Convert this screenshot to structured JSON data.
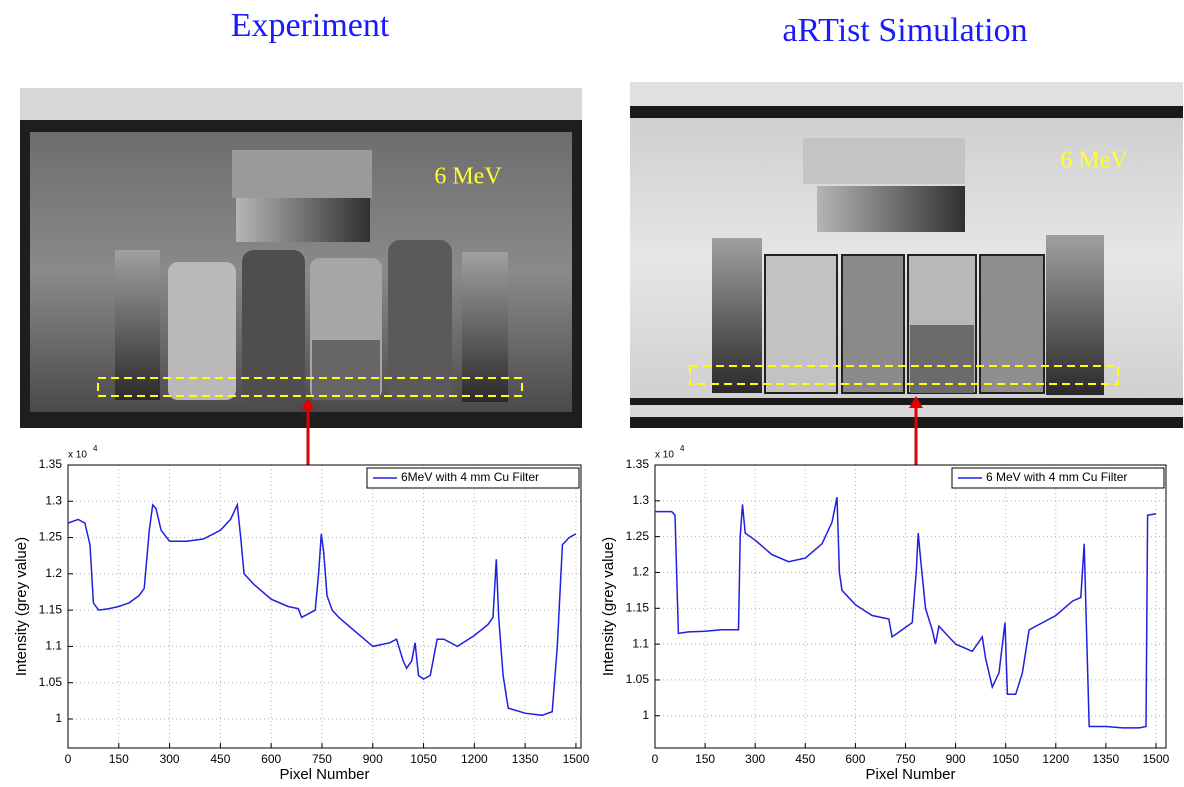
{
  "panels": [
    {
      "title": "Experiment",
      "energy_label": "6 MeV"
    },
    {
      "title": "aRTist Simulation",
      "energy_label": "6 MeV"
    }
  ],
  "chart_data": [
    {
      "type": "line",
      "x_label": "Pixel Number",
      "y_label": "Intensity (grey value)",
      "y_multiplier": "x 10",
      "y_multiplier_exp": "4",
      "xlim": [
        0,
        1515
      ],
      "xticks": [
        0,
        150,
        300,
        450,
        600,
        750,
        900,
        1050,
        1200,
        1350,
        1500
      ],
      "ylim": [
        0.96,
        1.35
      ],
      "yticks": [
        1,
        1.05,
        1.1,
        1.15,
        1.2,
        1.25,
        1.3,
        1.35
      ],
      "grid": true,
      "legend": "top-right",
      "x": [
        0,
        30,
        50,
        65,
        75,
        90,
        120,
        150,
        180,
        210,
        225,
        240,
        250,
        260,
        275,
        300,
        350,
        400,
        450,
        480,
        500,
        510,
        520,
        550,
        600,
        650,
        680,
        690,
        710,
        730,
        740,
        748,
        755,
        765,
        780,
        800,
        850,
        900,
        950,
        970,
        990,
        1000,
        1015,
        1025,
        1035,
        1050,
        1070,
        1090,
        1110,
        1150,
        1200,
        1240,
        1255,
        1265,
        1272,
        1285,
        1300,
        1350,
        1400,
        1430,
        1445,
        1460,
        1480,
        1500
      ],
      "series": [
        {
          "name": "6MeV with 4 mm Cu Filter",
          "color": "#1f1fe0",
          "values": [
            1.27,
            1.275,
            1.27,
            1.24,
            1.16,
            1.15,
            1.152,
            1.155,
            1.16,
            1.17,
            1.18,
            1.26,
            1.295,
            1.29,
            1.26,
            1.245,
            1.245,
            1.248,
            1.26,
            1.275,
            1.295,
            1.25,
            1.2,
            1.185,
            1.165,
            1.155,
            1.152,
            1.14,
            1.145,
            1.15,
            1.2,
            1.255,
            1.23,
            1.17,
            1.15,
            1.14,
            1.12,
            1.1,
            1.105,
            1.11,
            1.08,
            1.07,
            1.08,
            1.105,
            1.06,
            1.055,
            1.06,
            1.11,
            1.11,
            1.1,
            1.115,
            1.13,
            1.14,
            1.22,
            1.14,
            1.06,
            1.015,
            1.008,
            1.005,
            1.01,
            1.1,
            1.24,
            1.25,
            1.255
          ]
        }
      ]
    },
    {
      "type": "line",
      "x_label": "Pixel Number",
      "y_label": "Intensity (grey value)",
      "y_multiplier": "x 10",
      "y_multiplier_exp": "4",
      "xlim": [
        0,
        1530
      ],
      "xticks": [
        0,
        150,
        300,
        450,
        600,
        750,
        900,
        1050,
        1200,
        1350,
        1500
      ],
      "ylim": [
        0.955,
        1.35
      ],
      "yticks": [
        1,
        1.05,
        1.1,
        1.15,
        1.2,
        1.25,
        1.3,
        1.35
      ],
      "grid": true,
      "legend": "top-right",
      "x": [
        0,
        50,
        60,
        70,
        100,
        150,
        200,
        250,
        255,
        262,
        270,
        300,
        350,
        400,
        450,
        500,
        530,
        545,
        552,
        560,
        600,
        650,
        700,
        710,
        740,
        770,
        782,
        788,
        795,
        810,
        830,
        840,
        850,
        900,
        950,
        980,
        990,
        1010,
        1030,
        1048,
        1055,
        1080,
        1100,
        1120,
        1200,
        1250,
        1275,
        1285,
        1292,
        1300,
        1350,
        1400,
        1450,
        1470,
        1475,
        1500
      ],
      "series": [
        {
          "name": "6 MeV with 4 mm Cu Filter",
          "color": "#1f1fe0",
          "values": [
            1.285,
            1.285,
            1.28,
            1.115,
            1.117,
            1.118,
            1.12,
            1.12,
            1.25,
            1.295,
            1.255,
            1.245,
            1.225,
            1.215,
            1.22,
            1.24,
            1.27,
            1.305,
            1.2,
            1.175,
            1.155,
            1.14,
            1.135,
            1.11,
            1.12,
            1.13,
            1.2,
            1.255,
            1.22,
            1.15,
            1.12,
            1.1,
            1.125,
            1.1,
            1.09,
            1.11,
            1.08,
            1.04,
            1.06,
            1.13,
            1.03,
            1.03,
            1.06,
            1.12,
            1.14,
            1.16,
            1.165,
            1.24,
            1.12,
            0.985,
            0.985,
            0.983,
            0.983,
            0.985,
            1.28,
            1.282
          ]
        }
      ]
    }
  ]
}
